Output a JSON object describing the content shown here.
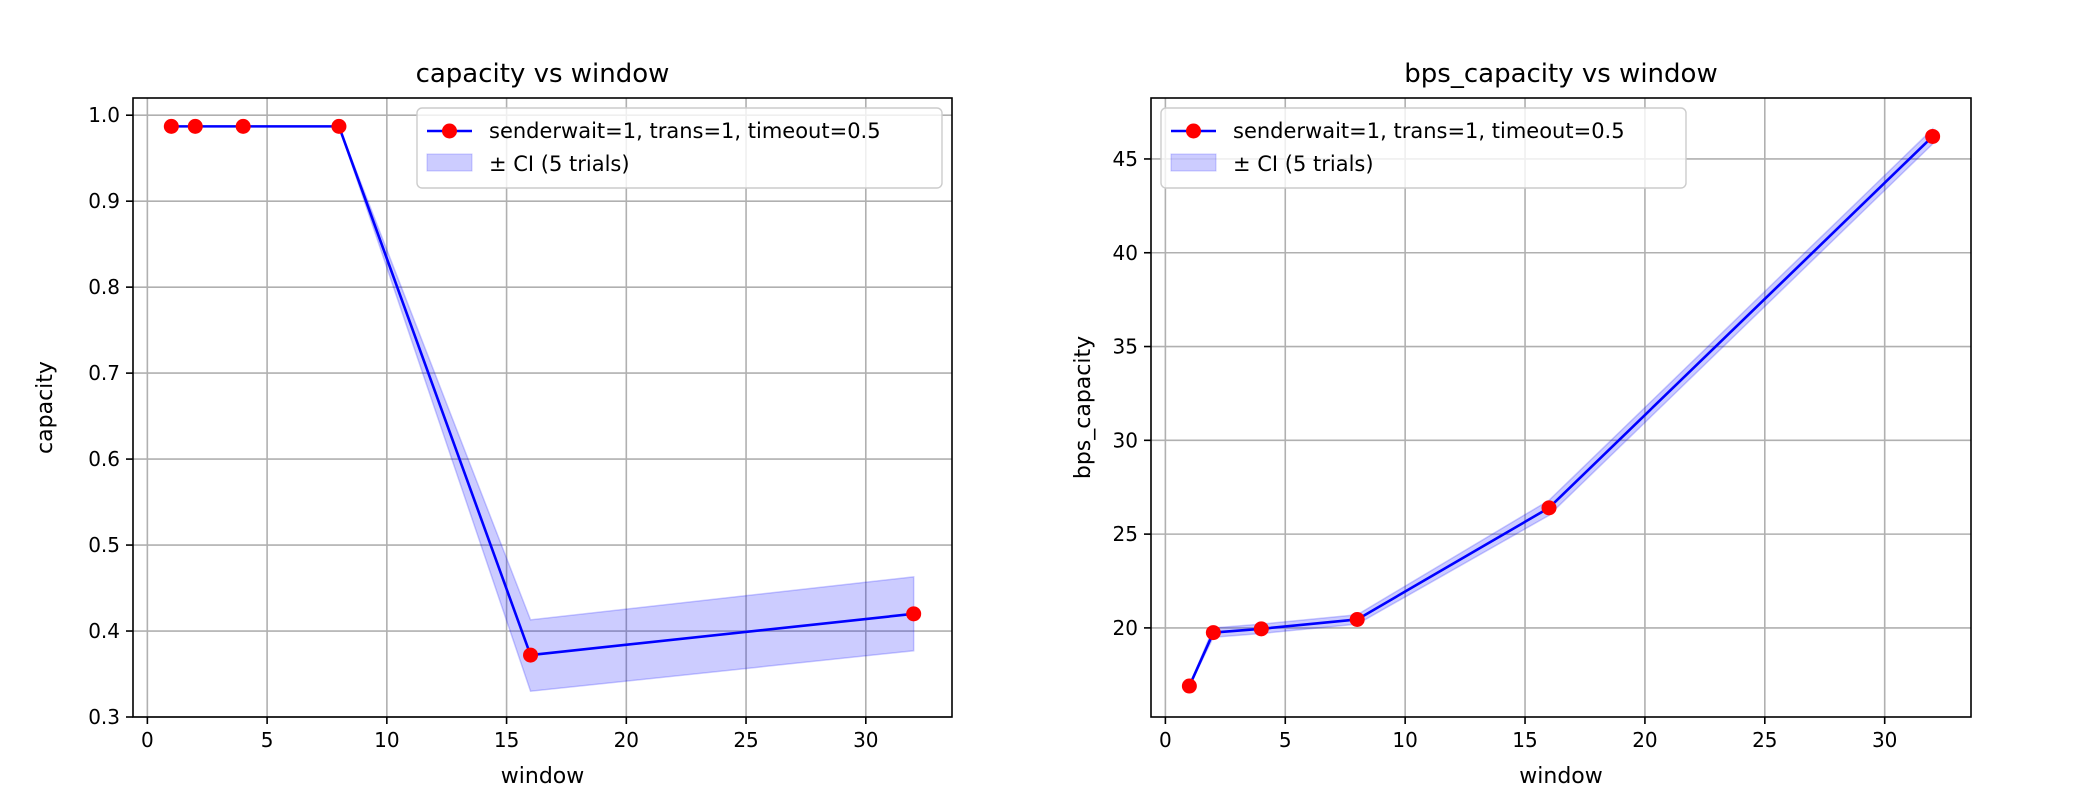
{
  "colors": {
    "line": "#0000ff",
    "marker": "#ff0000",
    "ci_fill": "#0000ff",
    "grid": "#b0b0b0",
    "legend_border": "#cccccc"
  },
  "chart_data": [
    {
      "type": "line",
      "title": "capacity vs window",
      "xlabel": "window",
      "ylabel": "capacity",
      "xlim": [
        -0.6,
        33.6
      ],
      "ylim": [
        0.3,
        1.02
      ],
      "xticks": [
        0,
        5,
        10,
        15,
        20,
        25,
        30
      ],
      "yticks": [
        0.3,
        0.4,
        0.5,
        0.6,
        0.7,
        0.8,
        0.9,
        1.0
      ],
      "ytick_labels": [
        "0.3",
        "0.4",
        "0.5",
        "0.6",
        "0.7",
        "0.8",
        "0.9",
        "1.0"
      ],
      "grid": true,
      "legend_position": "top-right",
      "series": [
        {
          "name": "senderwait=1, trans=1, timeout=0.5",
          "x": [
            1,
            2,
            4,
            8,
            16,
            32
          ],
          "y": [
            0.987,
            0.987,
            0.987,
            0.987,
            0.372,
            0.42
          ],
          "ci_lower": [
            0.987,
            0.987,
            0.987,
            0.987,
            0.33,
            0.377
          ],
          "ci_upper": [
            0.987,
            0.987,
            0.987,
            0.987,
            0.413,
            0.463
          ]
        }
      ],
      "ci_label": "± CI (5 trials)"
    },
    {
      "type": "line",
      "title": "bps_capacity vs window",
      "xlabel": "window",
      "ylabel": "bps_capacity",
      "xlim": [
        -0.6,
        33.6
      ],
      "ylim": [
        15.25,
        48.25
      ],
      "xticks": [
        0,
        5,
        10,
        15,
        20,
        25,
        30
      ],
      "yticks": [
        20,
        25,
        30,
        35,
        40,
        45
      ],
      "ytick_labels": [
        "20",
        "25",
        "30",
        "35",
        "40",
        "45"
      ],
      "grid": true,
      "legend_position": "top-left",
      "series": [
        {
          "name": "senderwait=1, trans=1, timeout=0.5",
          "x": [
            1,
            2,
            4,
            8,
            16,
            32
          ],
          "y": [
            16.9,
            19.75,
            19.95,
            20.45,
            26.4,
            46.2
          ],
          "ci_lower": [
            16.9,
            19.5,
            19.7,
            20.2,
            26.0,
            45.8
          ],
          "ci_upper": [
            16.9,
            20.0,
            20.2,
            20.7,
            26.8,
            46.6
          ]
        }
      ],
      "ci_label": "± CI (5 trials)"
    }
  ]
}
